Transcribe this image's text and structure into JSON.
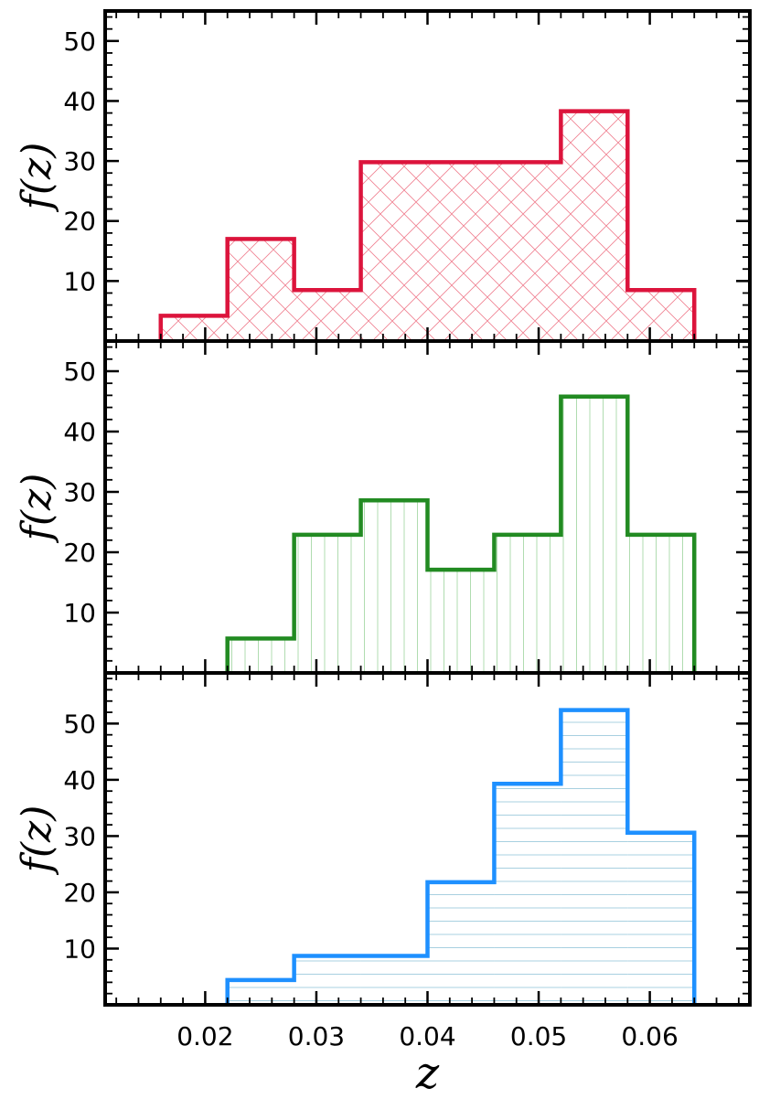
{
  "chart_data": [
    {
      "type": "histogram",
      "bin_edges": [
        0.016,
        0.022,
        0.028,
        0.034,
        0.04,
        0.046,
        0.052,
        0.058,
        0.064
      ],
      "values": [
        4.2,
        17.0,
        8.5,
        29.8,
        29.8,
        29.8,
        38.3,
        8.5
      ],
      "color": "#dc143c",
      "hatch": "cross",
      "xlim": [
        0.011,
        0.069
      ],
      "ylim": [
        0,
        55
      ],
      "yticks": [
        10,
        20,
        30,
        40,
        50
      ],
      "ylabel": "f(z)"
    },
    {
      "type": "histogram",
      "bin_edges": [
        0.016,
        0.022,
        0.028,
        0.034,
        0.04,
        0.046,
        0.052,
        0.058,
        0.064
      ],
      "values": [
        0,
        5.7,
        22.9,
        28.6,
        17.1,
        22.9,
        45.8,
        22.9
      ],
      "color": "#228b22",
      "hatch": "vertical",
      "xlim": [
        0.011,
        0.069
      ],
      "ylim": [
        0,
        55
      ],
      "yticks": [
        10,
        20,
        30,
        40,
        50
      ],
      "ylabel": "f(z)"
    },
    {
      "type": "histogram",
      "bin_edges": [
        0.016,
        0.022,
        0.028,
        0.034,
        0.04,
        0.046,
        0.052,
        0.058,
        0.064
      ],
      "values": [
        0,
        4.4,
        8.7,
        8.7,
        21.8,
        39.3,
        52.4,
        30.6
      ],
      "color": "#1e90ff",
      "hatch": "horizontal",
      "xlim": [
        0.011,
        0.069
      ],
      "ylim": [
        0,
        59
      ],
      "yticks": [
        10,
        20,
        30,
        40,
        50
      ],
      "ylabel": "f(z)"
    }
  ],
  "xaxis": {
    "ticks": [
      0.02,
      0.03,
      0.04,
      0.05,
      0.06
    ],
    "tick_labels": [
      "0.02",
      "0.03",
      "0.04",
      "0.05",
      "0.06"
    ],
    "label": "z"
  }
}
